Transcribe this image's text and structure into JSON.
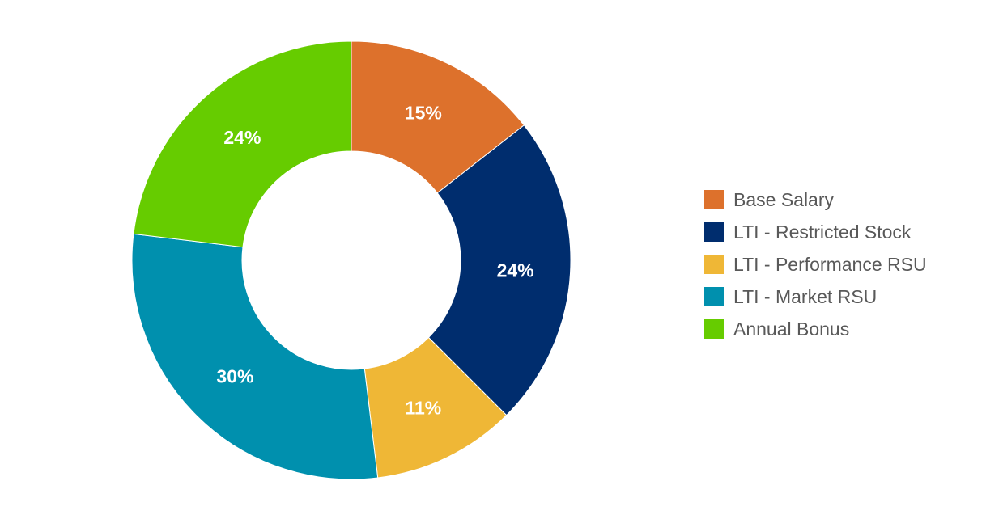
{
  "chart_data": {
    "type": "pie",
    "donut": true,
    "title": "",
    "slices": [
      {
        "label": "Base Salary",
        "value": 15,
        "display": "15%",
        "color": "#DD712C"
      },
      {
        "label": "LTI - Restricted Stock",
        "value": 24,
        "display": "24%",
        "color": "#002D6E"
      },
      {
        "label": "LTI - Performance RSU",
        "value": 11,
        "display": "11%",
        "color": "#EFB736"
      },
      {
        "label": "LTI - Market RSU",
        "value": 30,
        "display": "30%",
        "color": "#0090AE"
      },
      {
        "label": "Annual Bonus",
        "value": 24,
        "display": "24%",
        "color": "#66CC00"
      }
    ],
    "legend_position": "right",
    "start_angle_deg": 0,
    "direction": "clockwise"
  }
}
